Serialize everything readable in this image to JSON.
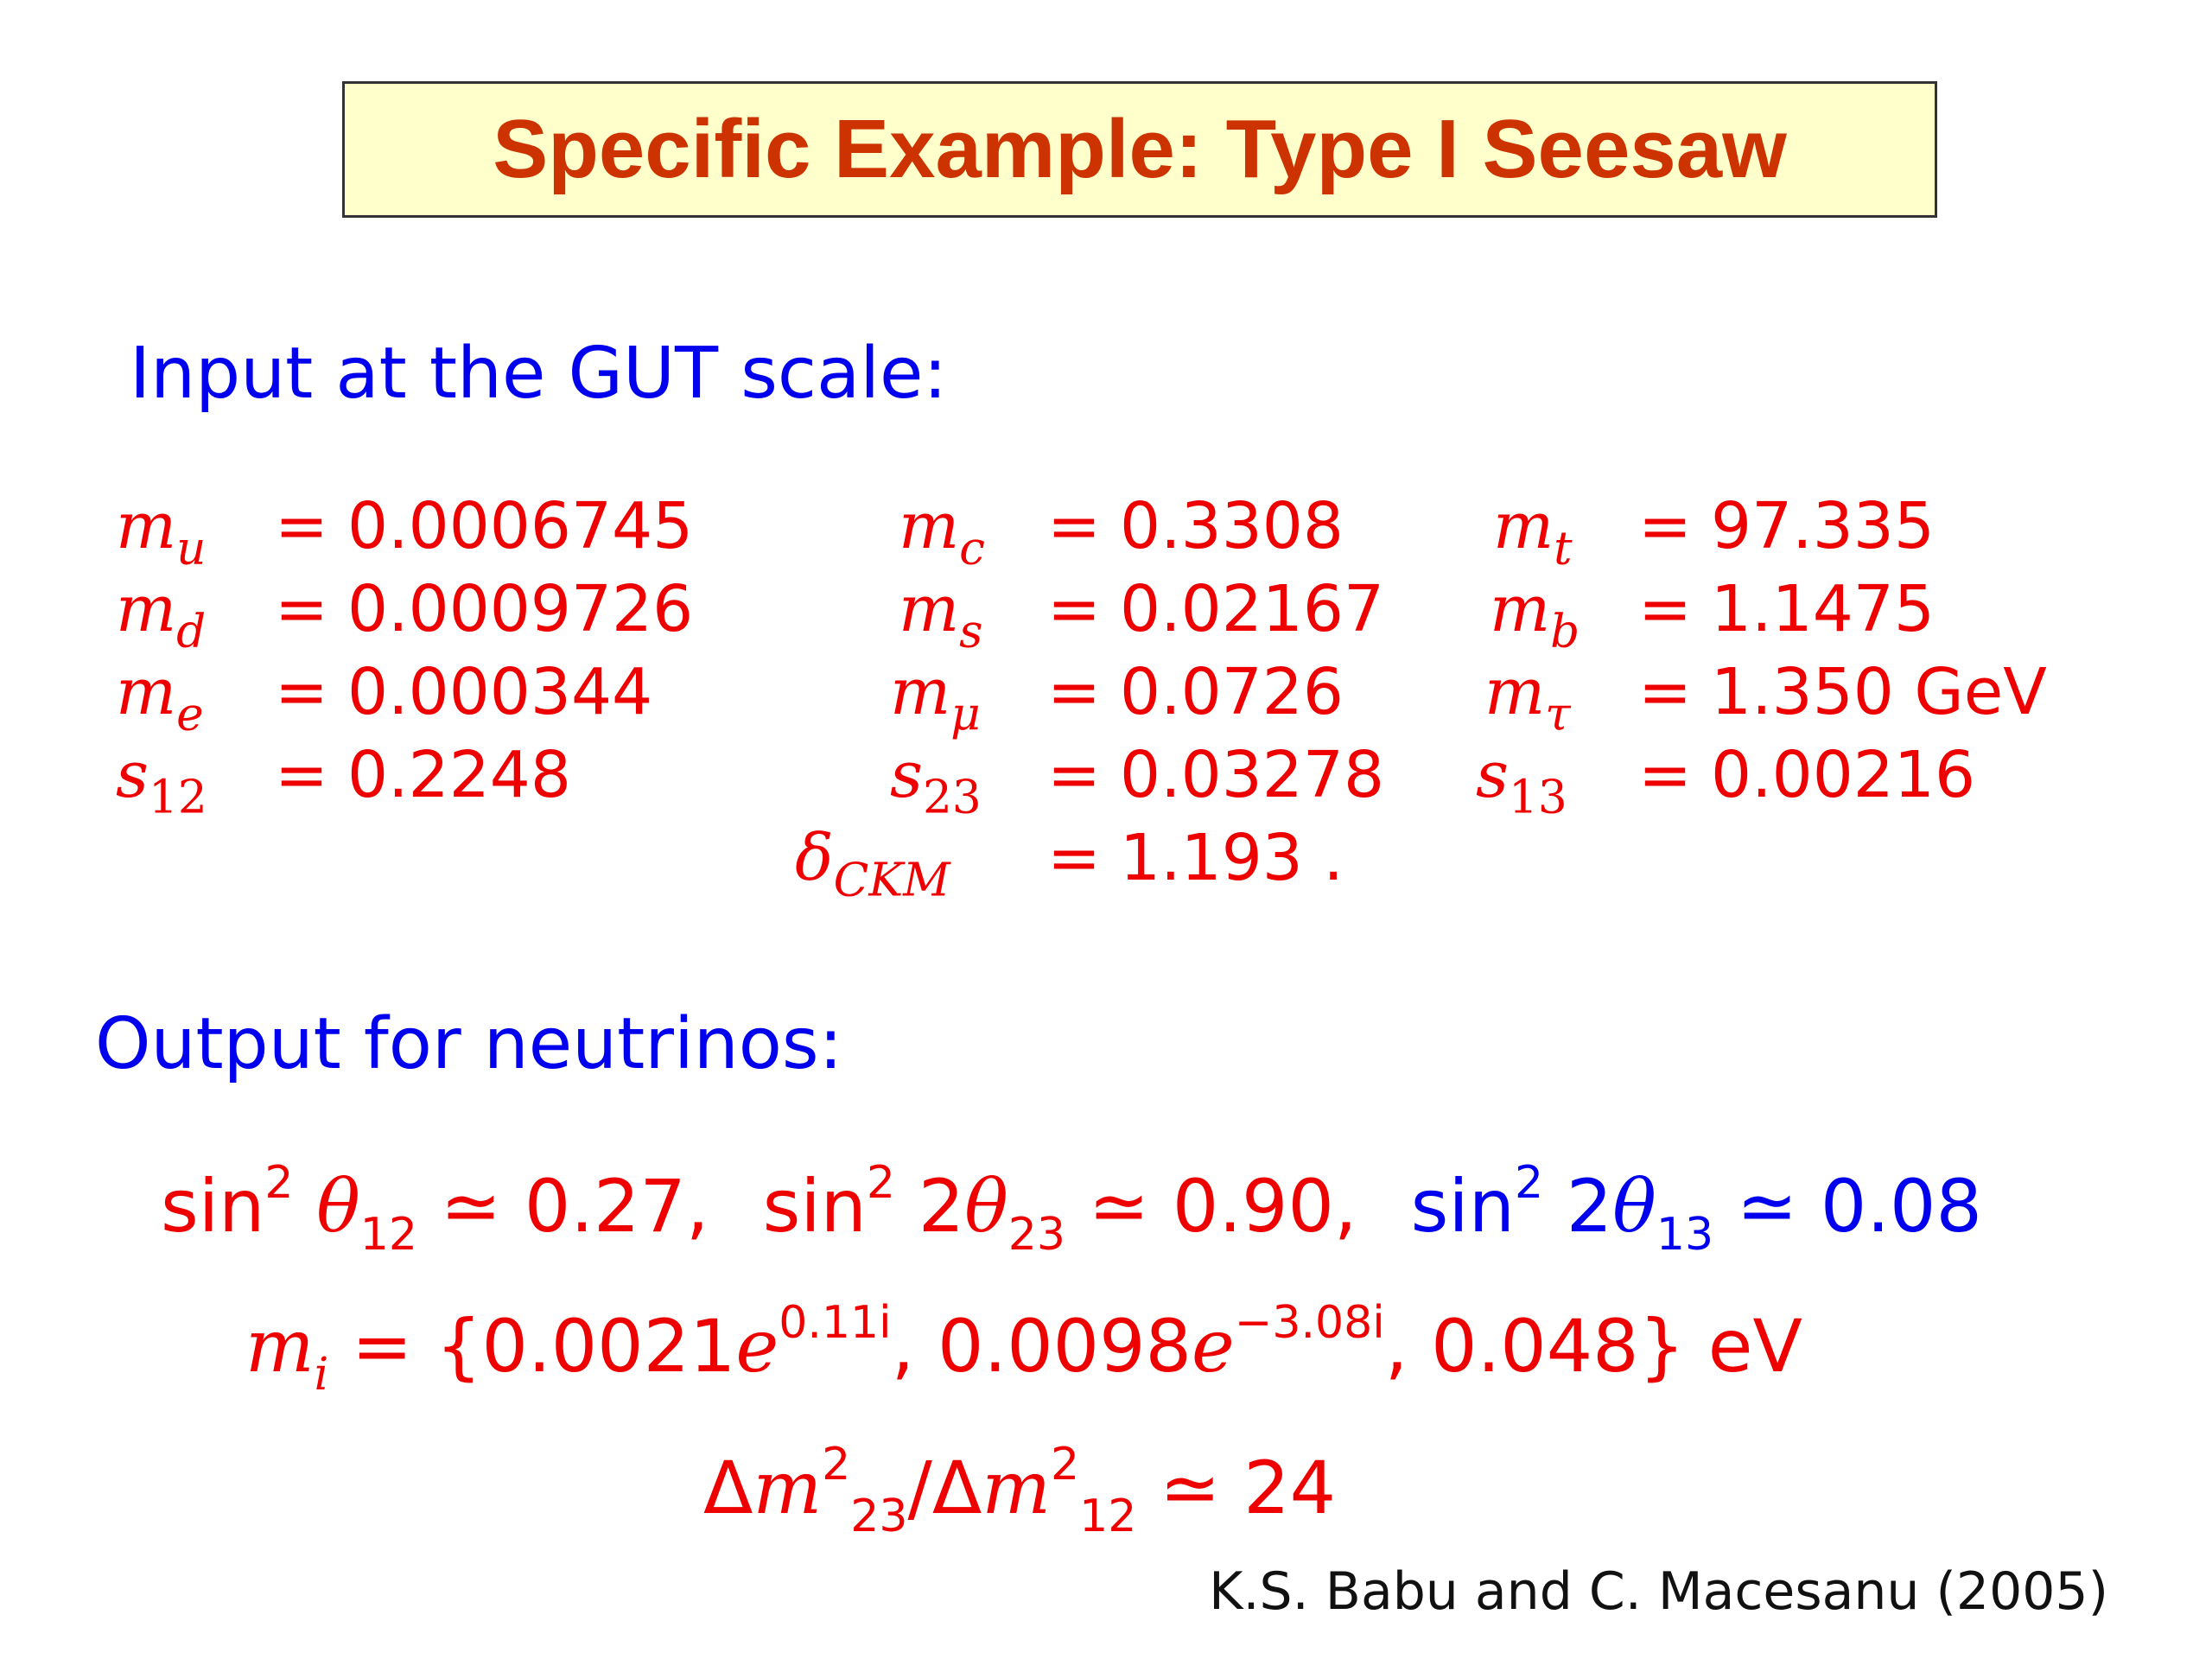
{
  "slide": {
    "title": "Specific Example: Type I Seesaw",
    "input_heading": "Input at the GUT scale:",
    "output_heading": "Output for neutrinos:",
    "citation": "K.S. Babu and C. Macesanu (2005)"
  },
  "inputs": {
    "m_u": {
      "base": "m",
      "sub": "u",
      "value": "0.0006745"
    },
    "m_d": {
      "base": "m",
      "sub": "d",
      "value": "0.0009726"
    },
    "m_e": {
      "base": "m",
      "sub": "e",
      "value": "0.000344"
    },
    "s_12": {
      "base": "s",
      "sub": "12",
      "value": "0.2248"
    },
    "m_c": {
      "base": "m",
      "sub": "c",
      "value": "0.3308"
    },
    "m_s": {
      "base": "m",
      "sub": "s",
      "value": "0.02167"
    },
    "m_mu": {
      "base": "m",
      "sub": "μ",
      "value": "0.0726"
    },
    "s_23": {
      "base": "s",
      "sub": "23",
      "value": "0.03278"
    },
    "delta_ckm": {
      "base": "δ",
      "sub": "CKM",
      "value": "1.193 ."
    },
    "m_t": {
      "base": "m",
      "sub": "t",
      "value": "97.335"
    },
    "m_b": {
      "base": "m",
      "sub": "b",
      "value": "1.1475"
    },
    "m_tau": {
      "base": "m",
      "sub": "τ",
      "value": "1.350 GeV"
    },
    "s_13": {
      "base": "s",
      "sub": "13",
      "value": "0.00216"
    }
  },
  "equals_sign": "=",
  "outputs": {
    "sin": "sin",
    "sq": "2",
    "two": "2",
    "theta": "θ",
    "approx": "≃",
    "theta12_sub": "12",
    "theta12_value": "0.27,",
    "theta23_sub": "23",
    "theta23_value": "0.90,",
    "theta13_sub": "13",
    "theta13_value": "0.08",
    "masses_lhs_base": "m",
    "masses_lhs_sub": "i",
    "masses_open": "{0.0021",
    "e": "e",
    "phase1": "0.11i",
    "masses_mid": ",  0.0098",
    "phase2": "−3.08i",
    "masses_close": ",  0.048} eV",
    "delta": "Δ",
    "ratio_sub1": "23",
    "ratio_sub2": "12",
    "slash": "/",
    "ratio_value": "24"
  },
  "colors": {
    "title_text": "#cc3300",
    "title_bg": "#ffffcc",
    "heading": "#0000ee",
    "formula_red": "#ee0000",
    "formula_blue": "#0000ee"
  }
}
